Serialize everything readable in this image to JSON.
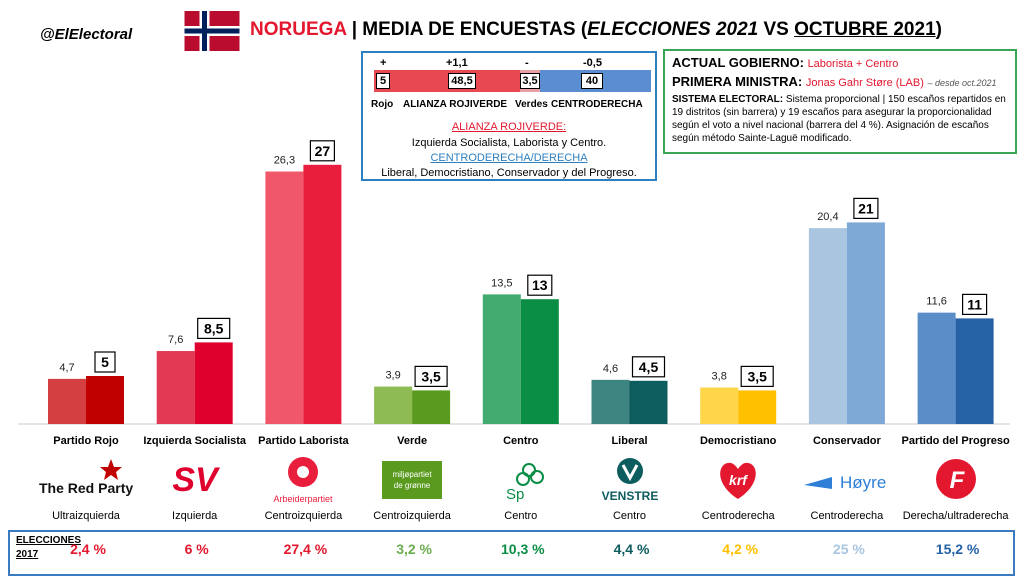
{
  "header": {
    "handle": "@ElElectoral",
    "country": "NORUEGA",
    "title_sep": "| MEDIA DE ENCUESTAS (",
    "title_election": "ELECCIONES 2021",
    "title_vs": " VS ",
    "title_month": "OCTUBRE 2021",
    "title_close": ")"
  },
  "alliance": {
    "diffs": [
      "+",
      "+1,1",
      "-",
      "-0,5"
    ],
    "values": [
      "5",
      "48,5",
      "3,5",
      "40"
    ],
    "labels": [
      "Rojo",
      "ALIANZA ROJIVERDE",
      "Verdes",
      "CENTRODERECHA"
    ],
    "red_title": "ALIANZA ROJIVERDE:",
    "red_members": "Izquierda Socialista, Laborista y Centro.",
    "blue_title": "CENTRODERECHA/DERECHA",
    "blue_members": "Liberal, Democristiano, Conservador y del Progreso.",
    "colors": [
      "#e8484f",
      "#e8484f",
      "#6cae4f",
      "#5b8ed0"
    ]
  },
  "government": {
    "actual_label": "ACTUAL GOBIERNO:",
    "actual_value": "Laborista + Centro",
    "pm_label": "PRIMERA MINISTRA:",
    "pm_value": "Jonas Gahr Støre (LAB)",
    "pm_since": "– desde oct.2021",
    "system_label": "SISTEMA ELECTORAL:",
    "system_text": "Sistema proporcional | 150 escaños repartidos en 19 distritos (sin barrera) y 19 escaños para asegurar la proporcionalidad según el voto a nivel nacional (barrera del 4 %). Asignación de escaños según método Sainte-Laguë modificado."
  },
  "chart_data": {
    "type": "bar",
    "categories": [
      "Partido Rojo",
      "Izquierda Socialista",
      "Partido Laborista",
      "Verde",
      "Centro",
      "Liberal",
      "Democristiano",
      "Conservador",
      "Partido del Progreso"
    ],
    "series": [
      {
        "values": [
          4.7,
          7.6,
          26.3,
          3.9,
          13.5,
          4.6,
          3.8,
          20.4,
          11.6
        ]
      },
      {
        "values": [
          5,
          8.5,
          27,
          3.5,
          13,
          4.5,
          3.5,
          21,
          11
        ]
      }
    ],
    "value_labels_1": [
      "4,7",
      "7,6",
      "26,3",
      "3,9",
      "13,5",
      "4,6",
      "3,8",
      "20,4",
      "11,6"
    ],
    "value_labels_2": [
      "5",
      "8,5",
      "27",
      "3,5",
      "13",
      "4,5",
      "3,5",
      "21",
      "11"
    ],
    "colors_1": [
      "#d44042",
      "#e23a55",
      "#f0576a",
      "#8fbb55",
      "#42ab6f",
      "#3e8480",
      "#ffd54a",
      "#a9c5e0",
      "#5b8ec9"
    ],
    "colors_2": [
      "#c00000",
      "#e0002e",
      "#e81e3c",
      "#5a9a1e",
      "#0a8d45",
      "#0d5c5e",
      "#ffc000",
      "#7ea8d6",
      "#2562a5"
    ],
    "ylim": [
      0,
      30
    ],
    "grid": false,
    "legend": "none"
  },
  "ideologies": [
    "Ultraizquierda",
    "Izquierda",
    "Centroizquierda",
    "Centroizquierda",
    "Centro",
    "Centro",
    "Centroderecha",
    "Centroderecha",
    "Derecha/ultraderecha"
  ],
  "logos": [
    "The Red Party",
    "SV",
    "Arbeiderpartiet",
    "miljøpartiet de grønne",
    "Sp",
    "VENSTRE",
    "krf",
    "Høyre",
    "F"
  ],
  "logo_colors": [
    "#c00000",
    "#e0002e",
    "#e81e3c",
    "#5a9a1e",
    "#0a8d45",
    "#0d5c5e",
    "#e3172e",
    "#2d7fd8",
    "#e3172e"
  ],
  "results": {
    "label_line1": "ELECCIONES",
    "label_line2": "2017",
    "values": [
      "2,4 %",
      "6 %",
      "27,4 %",
      "3,2 %",
      "10,3 %",
      "4,4 %",
      "4,2 %",
      "25 %",
      "15,2 %"
    ],
    "colors": [
      "#e3172e",
      "#e3172e",
      "#e3172e",
      "#6cae4f",
      "#0a8d45",
      "#0d5c5e",
      "#ffc000",
      "#a9c5e0",
      "#2562a5"
    ]
  }
}
